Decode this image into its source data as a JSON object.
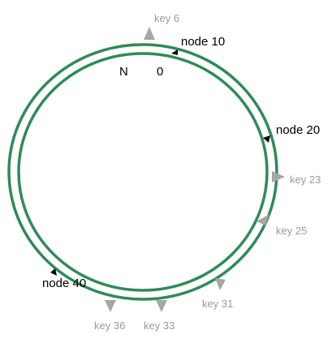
{
  "colors": {
    "ring": "#2e8b57",
    "node": "#000000",
    "key": "#a6a6a6",
    "key_text": "#9a9a9a"
  },
  "ring": {
    "start_label": "N",
    "zero_label": "0"
  },
  "nodes": [
    {
      "id": 10,
      "label": "node 10"
    },
    {
      "id": 20,
      "label": "node 20"
    },
    {
      "id": 40,
      "label": "node 40"
    }
  ],
  "keys": [
    {
      "id": 6,
      "label": "key 6"
    },
    {
      "id": 23,
      "label": "key 23"
    },
    {
      "id": 25,
      "label": "key 25"
    },
    {
      "id": 31,
      "label": "key 31"
    },
    {
      "id": 33,
      "label": "key 33"
    },
    {
      "id": 36,
      "label": "key 36"
    }
  ]
}
